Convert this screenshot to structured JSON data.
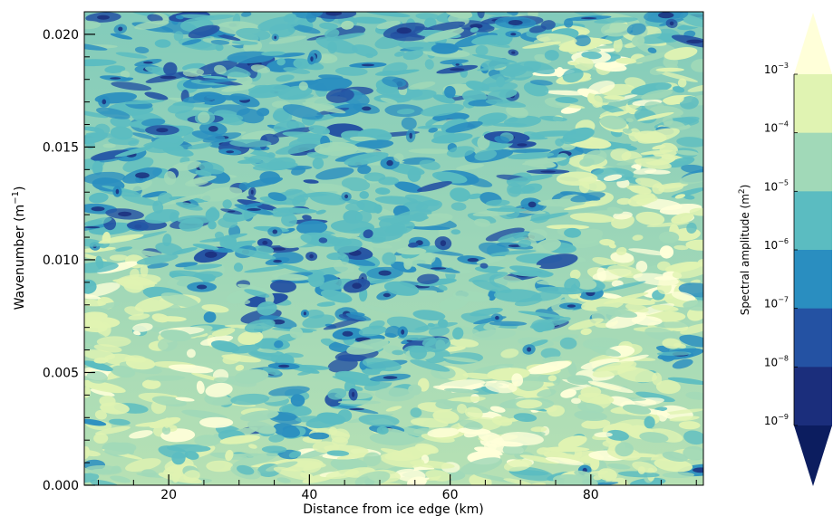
{
  "chart_data": {
    "type": "heatmap",
    "title": "",
    "x": {
      "label": "Distance from ice edge (km)",
      "range": [
        8,
        96
      ],
      "ticks": [
        20,
        40,
        60,
        80
      ],
      "tick_labels": [
        "20",
        "40",
        "60",
        "80"
      ]
    },
    "y": {
      "label_main": "Wavenumber (m",
      "label_exp": "−1",
      "label_close": ")",
      "range": [
        0,
        0.021
      ],
      "ticks": [
        0.0,
        0.005,
        0.01,
        0.015,
        0.02
      ],
      "tick_labels": [
        "0.000",
        "0.005",
        "0.010",
        "0.015",
        "0.020"
      ]
    },
    "colorbar": {
      "label_main": "Spectral amplitude (m",
      "label_exp": "2",
      "label_close": ")",
      "scale": "log",
      "extend": "both",
      "levels": [
        {
          "base": "10",
          "exp": "−3"
        },
        {
          "base": "10",
          "exp": "−4"
        },
        {
          "base": "10",
          "exp": "−5"
        },
        {
          "base": "10",
          "exp": "−6"
        },
        {
          "base": "10",
          "exp": "−7"
        },
        {
          "base": "10",
          "exp": "−8"
        },
        {
          "base": "10",
          "exp": "−9"
        }
      ],
      "colors": [
        "#ffffd9",
        "#e0f3b2",
        "#a1d9b8",
        "#5bbcc1",
        "#2a8ec0",
        "#2452a3",
        "#1b2e7c",
        "#0c1d5f"
      ]
    },
    "description_levels_low_k": "higher amplitude (yellow) near low wavenumbers and near 15-25 km and 60-95 km"
  }
}
